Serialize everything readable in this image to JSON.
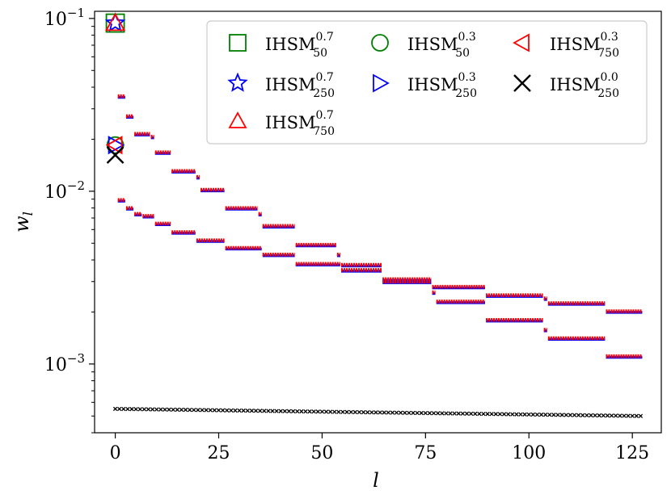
{
  "chart_data": {
    "type": "scatter",
    "xlabel": "l",
    "ylabel": "w_l",
    "xlim": [
      -5,
      132
    ],
    "ylim": [
      0.0004,
      0.11
    ],
    "yscale": "log",
    "x_ticks": [
      0,
      25,
      50,
      75,
      100,
      125
    ],
    "x_tick_labels": [
      "0",
      "25",
      "50",
      "75",
      "100",
      "125"
    ],
    "y_ticks": [
      0.001,
      0.01,
      0.1
    ],
    "y_tick_labels": [
      {
        "base": "10",
        "exp": "−3"
      },
      {
        "base": "10",
        "exp": "−2"
      },
      {
        "base": "10",
        "exp": "−1"
      }
    ],
    "legend_position": "top-right",
    "legend": [
      {
        "base": "IHSM",
        "sup": "0.7",
        "sub": "50",
        "marker": "square",
        "color": "#008000"
      },
      {
        "base": "IHSM",
        "sup": "0.7",
        "sub": "250",
        "marker": "star",
        "color": "#0000ff"
      },
      {
        "base": "IHSM",
        "sup": "0.7",
        "sub": "750",
        "marker": "triangle-up",
        "color": "#ff0000"
      },
      {
        "base": "IHSM",
        "sup": "0.3",
        "sub": "50",
        "marker": "circle",
        "color": "#008000"
      },
      {
        "base": "IHSM",
        "sup": "0.3",
        "sub": "250",
        "marker": "triangle-right",
        "color": "#0000ff"
      },
      {
        "base": "IHSM",
        "sup": "0.0",
        "sub": "250",
        "marker": "x",
        "color": "#000000"
      },
      {
        "base": "IHSM",
        "sup": "0.3",
        "sub": "750",
        "marker": "triangle-left",
        "color": "#ff0000"
      }
    ],
    "series": [
      {
        "label": "IHSM^0.7",
        "color": "#ff0000",
        "first_point": {
          "x": 0,
          "y": 0.094
        },
        "segments": [
          {
            "x": [
              1,
              2
            ],
            "y": 0.0355
          },
          {
            "x": [
              3,
              4
            ],
            "y": 0.0272
          },
          {
            "x": [
              5,
              8
            ],
            "y": 0.0215
          },
          {
            "x": [
              9,
              9
            ],
            "y": 0.0207
          },
          {
            "x": [
              10,
              13
            ],
            "y": 0.0168
          },
          {
            "x": [
              14,
              19
            ],
            "y": 0.0131
          },
          {
            "x": [
              20,
              20
            ],
            "y": 0.0121
          },
          {
            "x": [
              21,
              26
            ],
            "y": 0.0102
          },
          {
            "x": [
              27,
              34
            ],
            "y": 0.008
          },
          {
            "x": [
              35,
              35
            ],
            "y": 0.0074
          },
          {
            "x": [
              36,
              43
            ],
            "y": 0.0063
          },
          {
            "x": [
              44,
              53
            ],
            "y": 0.0049
          },
          {
            "x": [
              54,
              54
            ],
            "y": 0.0043
          },
          {
            "x": [
              55,
              64
            ],
            "y": 0.00375
          },
          {
            "x": [
              65,
              76
            ],
            "y": 0.0031
          },
          {
            "x": [
              77,
              77
            ],
            "y": 0.0026
          },
          {
            "x": [
              78,
              89
            ],
            "y": 0.0023
          },
          {
            "x": [
              90,
              103
            ],
            "y": 0.0018
          },
          {
            "x": [
              104,
              104
            ],
            "y": 0.00158
          },
          {
            "x": [
              105,
              118
            ],
            "y": 0.00141
          },
          {
            "x": [
              119,
              127
            ],
            "y": 0.00111
          }
        ]
      },
      {
        "label": "IHSM^0.3",
        "color": "#ff0000",
        "first_point": {
          "x": 0,
          "y": 0.0185
        },
        "segments": [
          {
            "x": [
              1,
              2
            ],
            "y": 0.0089
          },
          {
            "x": [
              3,
              4
            ],
            "y": 0.008
          },
          {
            "x": [
              5,
              6
            ],
            "y": 0.0074
          },
          {
            "x": [
              7,
              9
            ],
            "y": 0.0072
          },
          {
            "x": [
              10,
              13
            ],
            "y": 0.0065
          },
          {
            "x": [
              14,
              19
            ],
            "y": 0.0058
          },
          {
            "x": [
              20,
              26
            ],
            "y": 0.0052
          },
          {
            "x": [
              27,
              35
            ],
            "y": 0.0047
          },
          {
            "x": [
              36,
              43
            ],
            "y": 0.0043
          },
          {
            "x": [
              44,
              54
            ],
            "y": 0.0038
          },
          {
            "x": [
              55,
              64
            ],
            "y": 0.0035
          },
          {
            "x": [
              65,
              76
            ],
            "y": 0.003
          },
          {
            "x": [
              77,
              89
            ],
            "y": 0.0028
          },
          {
            "x": [
              90,
              103
            ],
            "y": 0.0025
          },
          {
            "x": [
              104,
              104
            ],
            "y": 0.0024
          },
          {
            "x": [
              105,
              118
            ],
            "y": 0.00225
          },
          {
            "x": [
              119,
              127
            ],
            "y": 0.00202
          }
        ]
      },
      {
        "label": "IHSM^0.0_250",
        "color": "#000000",
        "first_point": {
          "x": 0,
          "y": 0.0162
        },
        "line": {
          "x": [
            0,
            127
          ],
          "y": [
            0.00055,
            0.0005
          ]
        }
      }
    ]
  }
}
